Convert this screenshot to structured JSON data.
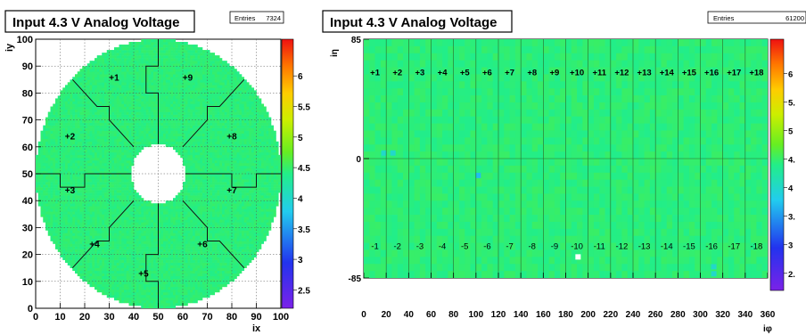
{
  "chart_data": [
    {
      "type": "heatmap",
      "title": "Input 4.3 V Analog Voltage",
      "stats_label": "Entries",
      "entries": "7324",
      "xlabel": "ix",
      "ylabel": "iy",
      "xlim": [
        0,
        100
      ],
      "ylim": [
        0,
        100
      ],
      "x_ticks": [
        "0",
        "10",
        "20",
        "30",
        "40",
        "50",
        "60",
        "70",
        "80",
        "90",
        "100"
      ],
      "y_ticks": [
        "0",
        "10",
        "20",
        "30",
        "40",
        "50",
        "60",
        "70",
        "80",
        "90",
        "100"
      ],
      "z_range": [
        2.2,
        6.6
      ],
      "z_ticks": [
        "2.5",
        "3",
        "3.5",
        "4",
        "4.5",
        "5",
        "5.5",
        "6"
      ],
      "typical_value": 4.45,
      "grid": true,
      "shape": "annulus",
      "outer_radius": 50,
      "inner_radius": 11,
      "sector_labels": [
        {
          "text": "+1",
          "x": 32,
          "y": 86
        },
        {
          "text": "+9",
          "x": 62,
          "y": 86
        },
        {
          "text": "+2",
          "x": 14,
          "y": 64
        },
        {
          "text": "+8",
          "x": 80,
          "y": 64
        },
        {
          "text": "+3",
          "x": 14,
          "y": 44
        },
        {
          "text": "+7",
          "x": 80,
          "y": 44
        },
        {
          "text": "+4",
          "x": 24,
          "y": 24
        },
        {
          "text": "+6",
          "x": 68,
          "y": 24
        },
        {
          "text": "+5",
          "x": 44,
          "y": 13
        }
      ]
    },
    {
      "type": "heatmap",
      "title": "Input 4.3 V Analog Voltage",
      "stats_label": "Entries",
      "entries": "61200",
      "xlabel": "iφ",
      "ylabel": "iη",
      "xlim": [
        0,
        360
      ],
      "ylim": [
        -85,
        85
      ],
      "x_ticks": [
        "0",
        "20",
        "40",
        "60",
        "80",
        "100",
        "120",
        "140",
        "160",
        "180",
        "200",
        "220",
        "240",
        "260",
        "280",
        "300",
        "320",
        "340",
        "360"
      ],
      "y_ticks": [
        "-85",
        "0",
        "85"
      ],
      "z_range": [
        2.2,
        6.6
      ],
      "z_ticks": [
        "2.",
        "3",
        "3.",
        "4",
        "4.",
        "5",
        "5.",
        "6"
      ],
      "typical_value": 4.45,
      "grid": true,
      "supermodule_labels_top": [
        "+1",
        "+2",
        "+3",
        "+4",
        "+5",
        "+6",
        "+7",
        "+8",
        "+9",
        "+10",
        "+11",
        "+12",
        "+13",
        "+14",
        "+15",
        "+16",
        "+17",
        "+18"
      ],
      "supermodule_labels_bottom": [
        "-1",
        "-2",
        "-3",
        "-4",
        "-5",
        "-6",
        "-7",
        "-8",
        "-9",
        "-10",
        "-11",
        "-12",
        "-13",
        "-14",
        "-15",
        "-16",
        "-17",
        "-18"
      ],
      "label_eta_top": 62,
      "label_eta_bottom": -62,
      "outliers": [
        {
          "x": 191,
          "y": -70,
          "value": 2.2
        },
        {
          "x": 102,
          "y": -12,
          "value": 3.7
        },
        {
          "x": 18,
          "y": 4,
          "value": 4.0
        },
        {
          "x": 26,
          "y": 4,
          "value": 4.0
        },
        {
          "x": 312,
          "y": -77,
          "value": 4.0
        },
        {
          "x": 312,
          "y": -82,
          "value": 4.0
        }
      ]
    }
  ]
}
